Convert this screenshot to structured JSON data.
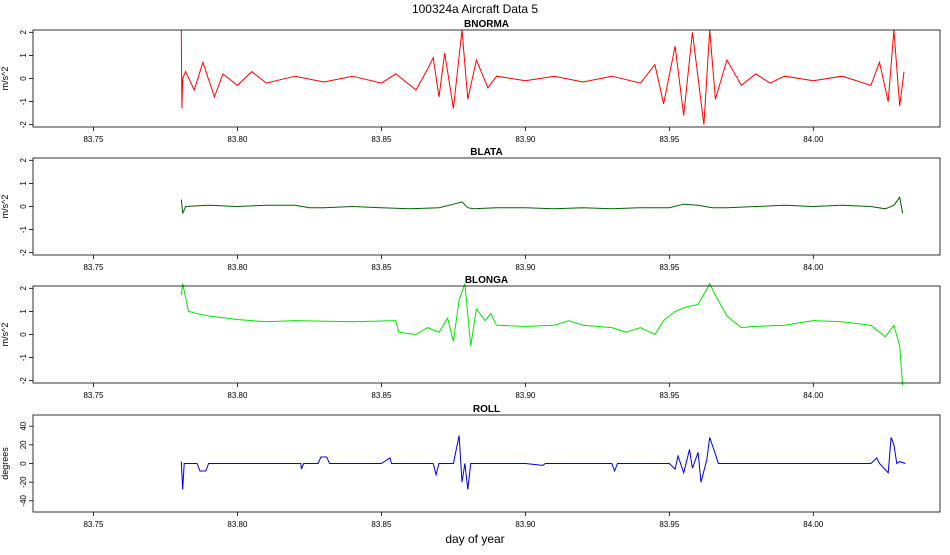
{
  "title": "100324a   Aircraft Data 5",
  "xlabel": "day of year",
  "chart_data": [
    {
      "type": "line",
      "title": "BNORMA",
      "ylabel": "m/s^2",
      "color": "#ff0000",
      "xlim": [
        83.729,
        84.044
      ],
      "ylim": [
        -2.1,
        2.1
      ],
      "x_ticks": [
        "83.75",
        "83.80",
        "83.85",
        "83.90",
        "83.95",
        "84.00"
      ],
      "y_ticks": [
        "-2",
        "-1",
        "0",
        "1",
        "2"
      ],
      "x_tick_values": [
        83.75,
        83.8,
        83.85,
        83.9,
        83.95,
        84.0
      ],
      "y_tick_values": [
        -2,
        -1,
        0,
        1,
        2
      ],
      "series": [
        {
          "x": [
            83.7805,
            83.7807,
            83.781,
            83.782,
            83.785,
            83.788,
            83.792,
            83.795,
            83.8,
            83.805,
            83.81,
            83.82,
            83.83,
            83.84,
            83.85,
            83.855,
            83.862,
            83.866,
            83.868,
            83.87,
            83.872,
            83.875,
            83.878,
            83.88,
            83.883,
            83.887,
            83.89,
            83.9,
            83.91,
            83.92,
            83.93,
            83.94,
            83.945,
            83.948,
            83.952,
            83.955,
            83.958,
            83.962,
            83.964,
            83.966,
            83.97,
            83.975,
            83.98,
            83.985,
            83.99,
            84.0,
            84.01,
            84.02,
            84.023,
            84.026,
            84.028,
            84.03,
            84.0315
          ],
          "y": [
            2.1,
            -1.3,
            0.0,
            0.3,
            -0.5,
            0.7,
            -0.8,
            0.2,
            -0.3,
            0.3,
            -0.2,
            0.1,
            -0.15,
            0.1,
            -0.2,
            0.2,
            -0.5,
            0.4,
            0.9,
            -0.8,
            1.1,
            -1.3,
            2.1,
            -0.9,
            0.8,
            -0.4,
            0.1,
            -0.1,
            0.1,
            -0.15,
            0.1,
            -0.2,
            0.6,
            -1.1,
            1.4,
            -1.6,
            2.0,
            -2.0,
            2.1,
            -0.9,
            0.8,
            -0.3,
            0.2,
            -0.2,
            0.1,
            -0.1,
            0.1,
            -0.3,
            0.7,
            -1.0,
            2.1,
            -1.2,
            0.3
          ]
        }
      ]
    },
    {
      "type": "line",
      "title": "BLATA",
      "ylabel": "m/s^2",
      "color": "#006400",
      "xlim": [
        83.729,
        84.044
      ],
      "ylim": [
        -2.1,
        2.1
      ],
      "x_ticks": [
        "83.75",
        "83.80",
        "83.85",
        "83.90",
        "83.95",
        "84.00"
      ],
      "y_ticks": [
        "-2",
        "-1",
        "0",
        "1",
        "2"
      ],
      "x_tick_values": [
        83.75,
        83.8,
        83.85,
        83.9,
        83.95,
        84.0
      ],
      "y_tick_values": [
        -2,
        -1,
        0,
        1,
        2
      ],
      "series": [
        {
          "x": [
            83.7805,
            83.781,
            83.782,
            83.79,
            83.8,
            83.81,
            83.82,
            83.825,
            83.83,
            83.84,
            83.85,
            83.86,
            83.87,
            83.875,
            83.878,
            83.88,
            83.882,
            83.89,
            83.9,
            83.91,
            83.92,
            83.93,
            83.94,
            83.95,
            83.955,
            83.96,
            83.965,
            83.97,
            83.98,
            83.99,
            84.0,
            84.01,
            84.02,
            84.025,
            84.028,
            84.03,
            84.031
          ],
          "y": [
            0.3,
            -0.3,
            0.0,
            0.05,
            0.0,
            0.05,
            0.05,
            -0.05,
            -0.05,
            0.0,
            -0.05,
            -0.1,
            -0.05,
            0.1,
            0.2,
            -0.05,
            -0.1,
            -0.05,
            -0.05,
            -0.1,
            -0.05,
            -0.1,
            -0.05,
            -0.05,
            0.1,
            0.05,
            -0.05,
            -0.05,
            0.0,
            0.05,
            0.0,
            0.05,
            0.0,
            -0.1,
            0.05,
            0.4,
            -0.3
          ]
        }
      ]
    },
    {
      "type": "line",
      "title": "BLONGA",
      "ylabel": "m/s^2",
      "color": "#00e600",
      "xlim": [
        83.729,
        84.044
      ],
      "ylim": [
        -2.1,
        2.1
      ],
      "x_ticks": [
        "83.75",
        "83.80",
        "83.85",
        "83.90",
        "83.95",
        "84.00"
      ],
      "y_ticks": [
        "-2",
        "-1",
        "0",
        "1",
        "2"
      ],
      "x_tick_values": [
        83.75,
        83.8,
        83.85,
        83.9,
        83.95,
        84.0
      ],
      "y_tick_values": [
        -2,
        -1,
        0,
        1,
        2
      ],
      "series": [
        {
          "x": [
            83.7805,
            83.781,
            83.783,
            83.786,
            83.79,
            83.8,
            83.81,
            83.82,
            83.84,
            83.855,
            83.856,
            83.862,
            83.866,
            83.87,
            83.873,
            83.875,
            83.877,
            83.879,
            83.881,
            83.883,
            83.886,
            83.888,
            83.89,
            83.9,
            83.91,
            83.915,
            83.92,
            83.93,
            83.935,
            83.94,
            83.945,
            83.948,
            83.952,
            83.956,
            83.96,
            83.964,
            83.966,
            83.97,
            83.975,
            83.98,
            83.99,
            84.0,
            84.01,
            84.02,
            84.025,
            84.028,
            84.03,
            84.031
          ],
          "y": [
            1.7,
            2.2,
            1.0,
            0.9,
            0.8,
            0.65,
            0.55,
            0.6,
            0.55,
            0.6,
            0.1,
            0.0,
            0.3,
            0.1,
            0.7,
            -0.3,
            1.5,
            2.2,
            -0.5,
            1.1,
            0.6,
            0.9,
            0.4,
            0.35,
            0.4,
            0.6,
            0.4,
            0.3,
            0.1,
            0.3,
            0.0,
            0.6,
            1.0,
            1.2,
            1.3,
            2.2,
            1.7,
            0.8,
            0.3,
            0.35,
            0.4,
            0.6,
            0.55,
            0.4,
            -0.1,
            0.4,
            -0.5,
            -2.2
          ]
        }
      ]
    },
    {
      "type": "line",
      "title": "ROLL",
      "ylabel": "degrees",
      "color": "#0000dd",
      "xlim": [
        83.729,
        84.044
      ],
      "ylim": [
        -52,
        52
      ],
      "x_ticks": [
        "83.75",
        "83.80",
        "83.85",
        "83.90",
        "83.95",
        "84.00"
      ],
      "y_ticks": [
        "-40",
        "-20",
        "0",
        "20",
        "40"
      ],
      "x_tick_values": [
        83.75,
        83.8,
        83.85,
        83.9,
        83.95,
        84.0
      ],
      "y_tick_values": [
        -40,
        -20,
        0,
        20,
        40
      ],
      "series": [
        {
          "x": [
            83.7805,
            83.781,
            83.7815,
            83.783,
            83.786,
            83.787,
            83.789,
            83.79,
            83.8,
            83.822,
            83.8222,
            83.823,
            83.828,
            83.829,
            83.831,
            83.832,
            83.85,
            83.853,
            83.8535,
            83.855,
            83.868,
            83.869,
            83.87,
            83.875,
            83.877,
            83.878,
            83.879,
            83.88,
            83.881,
            83.8815,
            83.883,
            83.9,
            83.906,
            83.907,
            83.93,
            83.931,
            83.932,
            83.95,
            83.952,
            83.953,
            83.955,
            83.957,
            83.958,
            83.96,
            83.961,
            83.963,
            83.964,
            83.966,
            83.967,
            83.98,
            84.0,
            84.02,
            84.022,
            84.023,
            84.026,
            84.027,
            84.028,
            84.029,
            84.03,
            84.032
          ],
          "y": [
            2,
            -28,
            0,
            0,
            0,
            -8,
            -8,
            0,
            0,
            0,
            -6,
            0,
            0,
            7,
            7,
            0,
            0,
            6,
            0,
            0,
            0,
            -12,
            0,
            0,
            30,
            -20,
            0,
            -28,
            0,
            0,
            0,
            0,
            -2,
            0,
            0,
            -8,
            0,
            0,
            -6,
            8,
            -10,
            15,
            -5,
            12,
            -20,
            4,
            28,
            10,
            0,
            0,
            0,
            0,
            6,
            0,
            -10,
            28,
            20,
            0,
            2,
            0
          ]
        }
      ]
    }
  ]
}
